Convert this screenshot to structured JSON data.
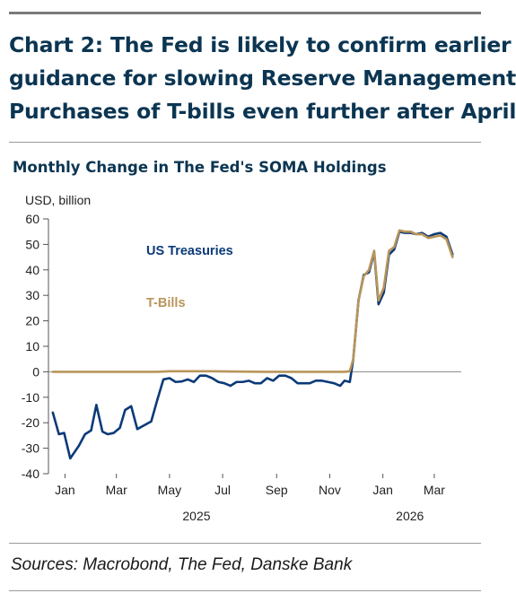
{
  "title_lines": [
    "Chart 2: The Fed is likely to confirm earlier",
    "guidance for slowing Reserve Management",
    "Purchases of T-bills even further after April"
  ],
  "chart_data": {
    "type": "line",
    "title": "Monthly Change in The Fed's SOMA Holdings",
    "ylabel": "USD, billion",
    "ylim": [
      -40,
      60
    ],
    "yticks": [
      60,
      50,
      40,
      30,
      20,
      10,
      0,
      -10,
      -20,
      -30,
      -40
    ],
    "xlim": [
      "2024-12-27",
      "2026-04-15"
    ],
    "xticks": [
      {
        "date": "2025-01-15",
        "label": "Jan"
      },
      {
        "date": "2025-03-15",
        "label": "Mar"
      },
      {
        "date": "2025-05-15",
        "label": "May"
      },
      {
        "date": "2025-07-15",
        "label": "Jul"
      },
      {
        "date": "2025-09-15",
        "label": "Sep"
      },
      {
        "date": "2025-11-15",
        "label": "Nov"
      },
      {
        "date": "2026-01-15",
        "label": "Jan"
      },
      {
        "date": "2026-03-15",
        "label": "Mar"
      }
    ],
    "year_labels": [
      {
        "date": "2025-06-15",
        "label": "2025"
      },
      {
        "date": "2026-02-15",
        "label": "2026"
      }
    ],
    "grid": false,
    "legend": "inline labels",
    "series": [
      {
        "name": "US Treasuries",
        "color": "#0b3a78",
        "points": [
          [
            "2025-01-01",
            -16
          ],
          [
            "2025-01-08",
            -24.5
          ],
          [
            "2025-01-14",
            -24
          ],
          [
            "2025-01-21",
            -34
          ],
          [
            "2025-01-31",
            -29
          ],
          [
            "2025-02-07",
            -24.5
          ],
          [
            "2025-02-14",
            -23
          ],
          [
            "2025-02-20",
            -13
          ],
          [
            "2025-02-27",
            -23.5
          ],
          [
            "2025-03-05",
            -24.5
          ],
          [
            "2025-03-12",
            -24
          ],
          [
            "2025-03-19",
            -22
          ],
          [
            "2025-03-25",
            -15
          ],
          [
            "2025-04-01",
            -13.5
          ],
          [
            "2025-04-08",
            -22.5
          ],
          [
            "2025-04-16",
            -21
          ],
          [
            "2025-04-24",
            -19.5
          ],
          [
            "2025-05-01",
            -11
          ],
          [
            "2025-05-08",
            -3
          ],
          [
            "2025-05-15",
            -2.5
          ],
          [
            "2025-05-22",
            -4
          ],
          [
            "2025-05-29",
            -3.8
          ],
          [
            "2025-06-05",
            -3
          ],
          [
            "2025-06-12",
            -4
          ],
          [
            "2025-06-19",
            -1.5
          ],
          [
            "2025-06-26",
            -1.5
          ],
          [
            "2025-07-03",
            -2.5
          ],
          [
            "2025-07-10",
            -4
          ],
          [
            "2025-07-17",
            -4.5
          ],
          [
            "2025-07-24",
            -5.5
          ],
          [
            "2025-07-31",
            -4
          ],
          [
            "2025-08-07",
            -4
          ],
          [
            "2025-08-14",
            -3.5
          ],
          [
            "2025-08-21",
            -4.5
          ],
          [
            "2025-08-28",
            -4.5
          ],
          [
            "2025-09-04",
            -2.5
          ],
          [
            "2025-09-11",
            -3.5
          ],
          [
            "2025-09-18",
            -1.5
          ],
          [
            "2025-09-25",
            -1.5
          ],
          [
            "2025-10-02",
            -2.5
          ],
          [
            "2025-10-09",
            -4.5
          ],
          [
            "2025-10-16",
            -4.5
          ],
          [
            "2025-10-23",
            -4.5
          ],
          [
            "2025-10-30",
            -3.5
          ],
          [
            "2025-11-06",
            -3.5
          ],
          [
            "2025-11-13",
            -4
          ],
          [
            "2025-11-20",
            -4.5
          ],
          [
            "2025-11-27",
            -5.5
          ],
          [
            "2025-12-02",
            -3.5
          ],
          [
            "2025-12-08",
            -4
          ],
          [
            "2025-12-12",
            5
          ],
          [
            "2025-12-18",
            28
          ],
          [
            "2025-12-24",
            38
          ],
          [
            "2025-12-30",
            39
          ],
          [
            "2026-01-05",
            47
          ],
          [
            "2026-01-10",
            26.5
          ],
          [
            "2026-01-16",
            31
          ],
          [
            "2026-01-22",
            46
          ],
          [
            "2026-01-28",
            48
          ],
          [
            "2026-02-03",
            55
          ],
          [
            "2026-02-09",
            54.5
          ],
          [
            "2026-02-16",
            54.5
          ],
          [
            "2026-02-22",
            54
          ],
          [
            "2026-03-01",
            54.5
          ],
          [
            "2026-03-08",
            53
          ],
          [
            "2026-03-15",
            54
          ],
          [
            "2026-03-22",
            54.5
          ],
          [
            "2026-03-29",
            53
          ],
          [
            "2026-04-05",
            46
          ]
        ]
      },
      {
        "name": "T-Bills",
        "color": "#b8955a",
        "points": [
          [
            "2025-01-01",
            0
          ],
          [
            "2025-03-01",
            0
          ],
          [
            "2025-05-01",
            0
          ],
          [
            "2025-05-15",
            0.2
          ],
          [
            "2025-07-01",
            0.2
          ],
          [
            "2025-09-01",
            0
          ],
          [
            "2025-11-01",
            0
          ],
          [
            "2025-12-02",
            0
          ],
          [
            "2025-12-08",
            0.2
          ],
          [
            "2025-12-12",
            5
          ],
          [
            "2025-12-18",
            28
          ],
          [
            "2025-12-24",
            37.5
          ],
          [
            "2025-12-30",
            40
          ],
          [
            "2026-01-05",
            47.5
          ],
          [
            "2026-01-10",
            28
          ],
          [
            "2026-01-16",
            33
          ],
          [
            "2026-01-22",
            47.5
          ],
          [
            "2026-01-28",
            49
          ],
          [
            "2026-02-03",
            55.5
          ],
          [
            "2026-02-09",
            55
          ],
          [
            "2026-02-16",
            55
          ],
          [
            "2026-02-22",
            54
          ],
          [
            "2026-03-01",
            54
          ],
          [
            "2026-03-08",
            52.5
          ],
          [
            "2026-03-15",
            53
          ],
          [
            "2026-03-22",
            53.5
          ],
          [
            "2026-03-29",
            52
          ],
          [
            "2026-04-05",
            45
          ]
        ]
      }
    ]
  },
  "source": "Sources: Macrobond, The Fed, Danske Bank"
}
